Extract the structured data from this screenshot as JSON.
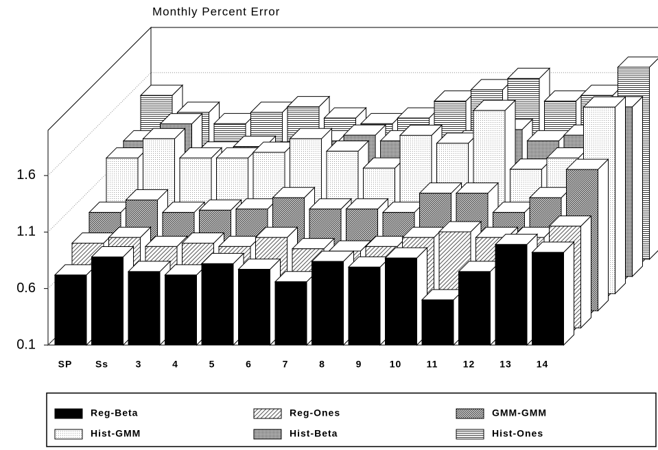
{
  "chart_data": {
    "type": "bar3d",
    "title": "Monthly Percent Error",
    "categories": [
      "SP",
      "Ss",
      "3",
      "4",
      "5",
      "6",
      "7",
      "8",
      "9",
      "10",
      "11",
      "12",
      "13",
      "14"
    ],
    "ylim": [
      0.1,
      2.0
    ],
    "yticks": [
      0.1,
      0.6,
      1.1,
      1.6
    ],
    "grid": true,
    "series": [
      {
        "name": "Reg-Beta",
        "color": "#000000",
        "pattern": "solid",
        "values": [
          0.72,
          0.88,
          0.75,
          0.72,
          0.82,
          0.77,
          0.66,
          0.84,
          0.79,
          0.87,
          0.5,
          0.75,
          0.99,
          0.92
        ]
      },
      {
        "name": "Reg-Ones",
        "color": "#555555",
        "pattern": "diagonal",
        "values": [
          0.85,
          0.9,
          0.82,
          0.85,
          0.82,
          0.9,
          0.8,
          0.78,
          0.82,
          0.9,
          0.95,
          0.9,
          0.9,
          1.0
        ]
      },
      {
        "name": "GMM-GMM",
        "color": "#222222",
        "pattern": "dense-diagonal",
        "values": [
          0.97,
          1.08,
          0.97,
          0.99,
          1.0,
          1.1,
          1.0,
          1.0,
          0.97,
          1.14,
          1.14,
          0.97,
          1.1,
          1.35
        ]
      },
      {
        "name": "Hist-GMM",
        "color": "#999999",
        "pattern": "dots",
        "values": [
          1.3,
          1.47,
          1.3,
          1.3,
          1.35,
          1.47,
          1.36,
          1.21,
          1.5,
          1.43,
          1.72,
          1.2,
          1.3,
          1.75
        ]
      },
      {
        "name": "Hist-Beta",
        "color": "#444444",
        "pattern": "checker",
        "values": [
          1.3,
          1.45,
          1.2,
          1.25,
          1.2,
          1.3,
          1.35,
          1.3,
          1.2,
          1.3,
          1.4,
          1.3,
          1.35,
          1.6
        ]
      },
      {
        "name": "Hist-Ones",
        "color": "#333333",
        "pattern": "horizontal",
        "values": [
          1.55,
          1.4,
          1.3,
          1.4,
          1.45,
          1.35,
          1.3,
          1.35,
          1.5,
          1.6,
          1.7,
          1.5,
          1.55,
          1.8
        ]
      }
    ]
  }
}
